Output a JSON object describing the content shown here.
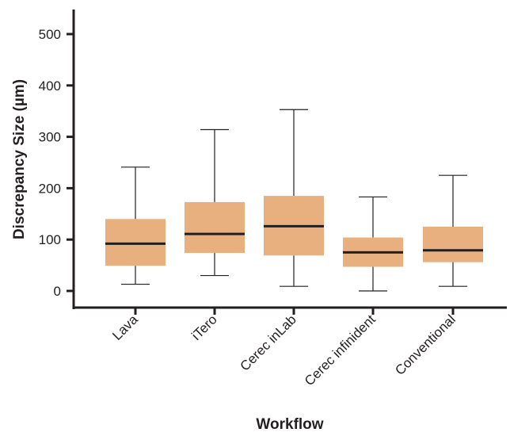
{
  "chart_data": {
    "type": "box",
    "xlabel": "Workflow",
    "ylabel": "Discrepancy Size (µm)",
    "ylim": [
      0,
      500
    ],
    "yticks": [
      0,
      100,
      200,
      300,
      400,
      500
    ],
    "box_color": "#e8b07e",
    "grid": false,
    "categories": [
      "Lava",
      "iTero",
      "Cerec inLab",
      "Cerec infinident",
      "Conventional"
    ],
    "boxes": [
      {
        "min": 13,
        "q1": 49,
        "median": 92,
        "q3": 140,
        "max": 241
      },
      {
        "min": 30,
        "q1": 74,
        "median": 111,
        "q3": 173,
        "max": 314
      },
      {
        "min": 9,
        "q1": 69,
        "median": 126,
        "q3": 185,
        "max": 353
      },
      {
        "min": 0,
        "q1": 47,
        "median": 75,
        "q3": 104,
        "max": 183
      },
      {
        "min": 9,
        "q1": 56,
        "median": 79,
        "q3": 125,
        "max": 225
      }
    ]
  }
}
